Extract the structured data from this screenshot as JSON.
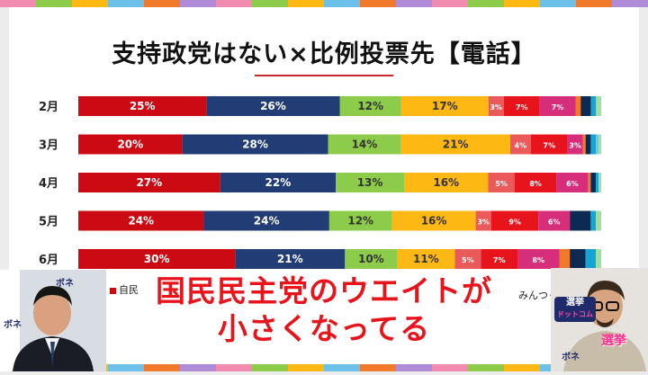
{
  "title": "支持政党はない×比例投票先【電話】",
  "chart_data": {
    "type": "bar",
    "orientation": "horizontal",
    "stacked": true,
    "normalized": true,
    "title": "支持政党はない×比例投票先【電話】",
    "categories": [
      "2月",
      "3月",
      "4月",
      "5月",
      "6月"
    ],
    "series": [
      {
        "name": "自民",
        "color": "#cc0a14",
        "values": [
          25,
          20,
          27,
          24,
          30
        ],
        "labels": [
          "25%",
          "20%",
          "27%",
          "24%",
          "30%"
        ]
      },
      {
        "color": "#223d75",
        "values": [
          26,
          28,
          22,
          24,
          21
        ],
        "labels": [
          "26%",
          "28%",
          "22%",
          "24%",
          "21%"
        ]
      },
      {
        "color": "#8ccc4a",
        "values": [
          12,
          14,
          13,
          12,
          10
        ],
        "labels": [
          "12%",
          "14%",
          "13%",
          "12%",
          "10%"
        ]
      },
      {
        "color": "#fdb813",
        "values": [
          17,
          21,
          16,
          16,
          11
        ],
        "labels": [
          "17%",
          "21%",
          "16%",
          "16%",
          "11%"
        ]
      },
      {
        "color": "#ea5a5a",
        "values": [
          3,
          4,
          5,
          3,
          5
        ],
        "labels": [
          "3%",
          "4%",
          "5%",
          "3%",
          "5%"
        ]
      },
      {
        "color": "#e8141c",
        "values": [
          7,
          7,
          8,
          9,
          7
        ],
        "labels": [
          "7%",
          "7%",
          "8%",
          "9%",
          "7%"
        ]
      },
      {
        "color": "#d62e7a",
        "values": [
          7,
          3,
          6,
          6,
          8
        ],
        "labels": [
          "7%",
          "3%",
          "6%",
          "6%",
          "8%"
        ]
      },
      {
        "color": "#f07a2a",
        "values": [
          1,
          0.5,
          0.5,
          0,
          2
        ],
        "labels": [
          "",
          "",
          "",
          "",
          ""
        ]
      },
      {
        "color": "#0d2a52",
        "values": [
          2,
          1,
          1,
          4,
          3
        ],
        "labels": [
          "",
          "",
          "",
          "",
          ""
        ]
      },
      {
        "color": "#13a5d6",
        "values": [
          1,
          1,
          0.5,
          1,
          2
        ],
        "labels": [
          "",
          "",
          "",
          "",
          ""
        ]
      },
      {
        "color": "#6ccad8",
        "values": [
          0,
          0.5,
          0,
          0,
          0
        ],
        "labels": [
          "",
          "",
          "",
          "",
          ""
        ]
      },
      {
        "color": "#9fe0a0",
        "values": [
          1,
          0.5,
          0.5,
          1,
          1
        ],
        "labels": [
          "",
          "",
          "",
          "",
          ""
        ]
      }
    ],
    "legend": {
      "placement": "bottom",
      "visible_entries": [
        "自民",
        "みんつく"
      ]
    }
  },
  "legend": {
    "first": "自民",
    "last": "みんつく",
    "first_color": "#cc0a14"
  },
  "caption": {
    "line1": "国民民主党のウエイトが",
    "line2": "小さくなってる"
  },
  "logos": {
    "left_top": "ボネ",
    "left_mid": "ボネ",
    "right_logo_top": "選挙",
    "right_logo_bottom": "ドットコム",
    "right_badge": "選挙",
    "right_bottom": "ボネ"
  }
}
